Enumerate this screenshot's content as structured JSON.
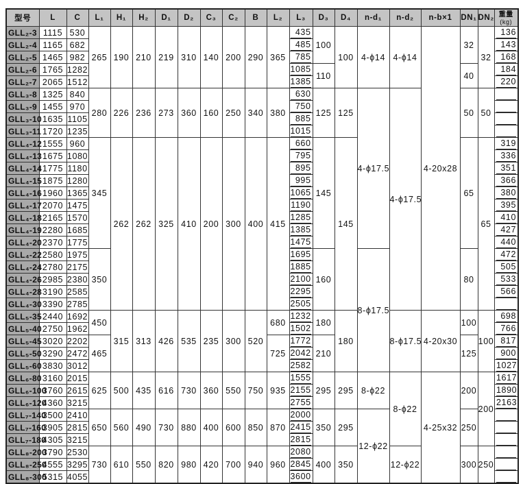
{
  "table": {
    "headers": [
      "型号",
      "L",
      "C",
      "L₁",
      "H₁",
      "H₂",
      "D₁",
      "D₂",
      "C₃",
      "C₂",
      "B",
      "L₂",
      "L₃",
      "D₃",
      "D₄",
      "n-d₁",
      "n-d₂",
      "n-b×1",
      "DN₁",
      "DN₂"
    ],
    "weight_header": {
      "line1": "重量",
      "line2": "(kg)"
    },
    "columns": [
      [
        "GLL₂-3",
        "GLL₂-4",
        "GLL₂-5",
        "GLL₂-6",
        "GLL₂-7",
        "GLL₃-8",
        "GLL₃-9",
        "GLL₃-10",
        "GLL₃-11",
        "GLL₄-12",
        "GLL₄-13",
        "GLL₄-14",
        "GLL₄-15",
        "GLL₄-16",
        "GLL₄-17",
        "GLL₄-18",
        "GLL₄-19",
        "GLL₄-20",
        "GLL₄-22",
        "GLL₄-24",
        "GLL₄-26",
        "GLL₄-28",
        "GLL₄-30",
        "GLL₅-35",
        "GLL₅-40",
        "GLL₅-45",
        "GLL₅-50",
        "GLL₅-60",
        "GLL₆-80",
        "GLL₆-100",
        "GLL₆-120",
        "GLL₇-140",
        "GLL₇-160",
        "GLL₇-180",
        "GLL₈-200",
        "GLL₈-250",
        "GLL₈-300"
      ],
      [
        "1115",
        "1165",
        "1465",
        "1765",
        "2065",
        "1325",
        "1455",
        "1635",
        "1720",
        "1555",
        "1675",
        "1775",
        "1875",
        "1960",
        "2070",
        "2165",
        "2280",
        "2370",
        "2580",
        "2780",
        "2985",
        "3190",
        "3390",
        "2440",
        "2750",
        "3020",
        "3290",
        "3830",
        "3160",
        "3760",
        "4360",
        "3500",
        "3905",
        "4305",
        "3790",
        "4555",
        "5315"
      ],
      [
        "530",
        "682",
        "982",
        "1282",
        "1512",
        "840",
        "970",
        "1105",
        "1235",
        "960",
        "1080",
        "1180",
        "1280",
        "1365",
        "1475",
        "1570",
        "1685",
        "1775",
        "1975",
        "2175",
        "2380",
        "2585",
        "2785",
        "1692",
        "1962",
        "2202",
        "2472",
        "3012",
        "2015",
        "2615",
        "3215",
        "2410",
        "2815",
        "3215",
        "2530",
        "3295",
        "4055"
      ],
      [
        [
          "265",
          5
        ],
        [
          "280",
          4
        ],
        [
          "345",
          9
        ],
        [
          "350",
          5
        ],
        [
          "450",
          2
        ],
        [
          "465",
          3
        ],
        [
          "625",
          3
        ],
        [
          "650",
          3
        ],
        [
          "730",
          3
        ]
      ],
      [
        [
          "190",
          5
        ],
        [
          "226",
          4
        ],
        [
          "262",
          14
        ],
        [
          "315",
          5
        ],
        [
          "500",
          3
        ],
        [
          "560",
          3
        ],
        [
          "610",
          3
        ]
      ],
      [
        [
          "210",
          5
        ],
        [
          "236",
          4
        ],
        [
          "262",
          14
        ],
        [
          "313",
          5
        ],
        [
          "435",
          3
        ],
        [
          "490",
          3
        ],
        [
          "550",
          3
        ]
      ],
      [
        [
          "219",
          5
        ],
        [
          "273",
          4
        ],
        [
          "325",
          14
        ],
        [
          "426",
          5
        ],
        [
          "616",
          3
        ],
        [
          "730",
          3
        ],
        [
          "820",
          3
        ]
      ],
      [
        [
          "310",
          5
        ],
        [
          "360",
          4
        ],
        [
          "410",
          14
        ],
        [
          "535",
          5
        ],
        [
          "730",
          3
        ],
        [
          "880",
          3
        ],
        [
          "980",
          3
        ]
      ],
      [
        [
          "140",
          5
        ],
        [
          "160",
          4
        ],
        [
          "200",
          14
        ],
        [
          "235",
          5
        ],
        [
          "360",
          3
        ],
        [
          "400",
          3
        ],
        [
          "420",
          3
        ]
      ],
      [
        [
          "200",
          5
        ],
        [
          "250",
          4
        ],
        [
          "300",
          14
        ],
        [
          "300",
          5
        ],
        [
          "550",
          3
        ],
        [
          "600",
          3
        ],
        [
          "700",
          3
        ]
      ],
      [
        [
          "290",
          5
        ],
        [
          "340",
          4
        ],
        [
          "400",
          14
        ],
        [
          "520",
          5
        ],
        [
          "750",
          3
        ],
        [
          "850",
          3
        ],
        [
          "940",
          3
        ]
      ],
      [
        [
          "365",
          5
        ],
        [
          "380",
          4
        ],
        [
          "415",
          14
        ],
        [
          "680",
          2
        ],
        [
          "725",
          3
        ],
        [
          "935",
          3
        ],
        [
          "870",
          3
        ],
        [
          "960",
          3
        ]
      ],
      [
        "435",
        "485",
        "785",
        "1085",
        "1385",
        "630",
        "750",
        "885",
        "1015",
        "660",
        "795",
        "895",
        "995",
        "1065",
        "1190",
        "1285",
        "1385",
        "1475",
        "1695",
        "1885",
        "2100",
        "2295",
        "2505",
        "1232",
        "1502",
        "1772",
        "2042",
        "2582",
        "1555",
        "2155",
        "2755",
        "2000",
        "2415",
        "2815",
        "2080",
        "2845",
        "3600"
      ],
      [
        [
          "100",
          3
        ],
        [
          "110",
          2
        ],
        [
          "125",
          4
        ],
        [
          "145",
          9
        ],
        [
          "160",
          5
        ],
        [
          "180",
          2
        ],
        [
          "210",
          3
        ],
        [
          "295",
          3
        ],
        [
          "350",
          3
        ],
        [
          "400",
          3
        ]
      ],
      [
        [
          "100",
          5
        ],
        [
          "125",
          4
        ],
        [
          "145",
          14
        ],
        [
          "180",
          5
        ],
        [
          "295",
          3
        ],
        [
          "295",
          3
        ],
        [
          "350",
          3
        ]
      ],
      [
        [
          "4-ϕ14",
          5
        ],
        [
          "4-ϕ17.5",
          13
        ],
        [
          "8-ϕ17.5",
          10
        ],
        [
          "8-ϕ22",
          3
        ],
        [
          "12-ϕ22",
          6
        ]
      ],
      [
        [
          "4-ϕ14",
          5
        ],
        [
          "4-ϕ17.5",
          18
        ],
        [
          "8-ϕ17.5",
          5
        ],
        [
          "8-ϕ22",
          6
        ],
        [
          "12-ϕ22",
          3
        ]
      ],
      [
        [
          "4-20x28",
          23
        ],
        [
          "4-20x30",
          5
        ],
        [
          "4-25x32",
          9
        ]
      ],
      [
        [
          "32",
          3
        ],
        [
          "40",
          2
        ],
        [
          "50",
          4
        ],
        [
          "65",
          9
        ],
        [
          "80",
          5
        ],
        [
          "100",
          2
        ],
        [
          "125",
          3
        ],
        [
          "200",
          3
        ],
        [
          "250",
          3
        ],
        [
          "300",
          3
        ]
      ],
      [
        [
          "32",
          5
        ],
        [
          "50",
          4
        ],
        [
          "65",
          14
        ],
        [
          "100",
          5
        ],
        [
          "200",
          6
        ],
        [
          "250",
          3
        ]
      ],
      [
        "136",
        "143",
        "168",
        "184",
        "220",
        "",
        "",
        "",
        "",
        "319",
        "336",
        "351",
        "366",
        "380",
        "395",
        "410",
        "427",
        "440",
        "472",
        "505",
        "533",
        "566",
        "",
        "698",
        "766",
        "817",
        "900",
        "1027",
        "1617",
        "1890",
        "2163",
        "",
        "",
        "",
        "",
        "",
        ""
      ]
    ]
  }
}
